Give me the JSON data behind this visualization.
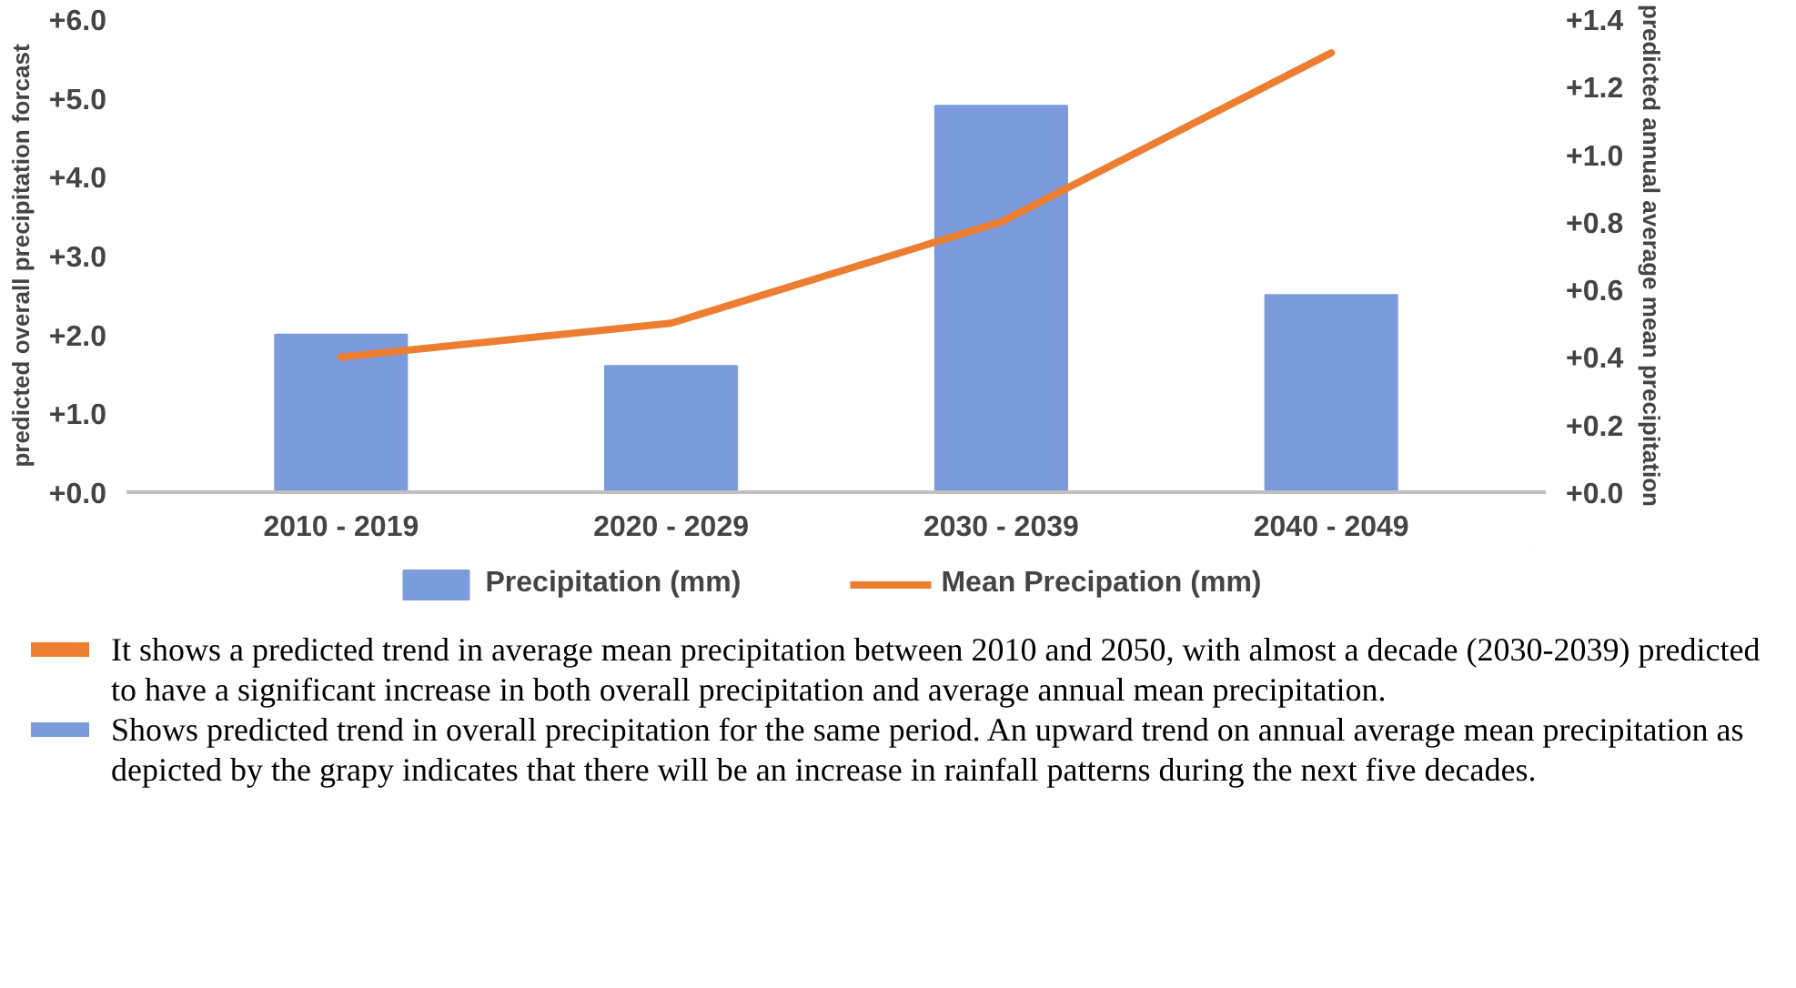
{
  "chart_data": {
    "type": "bar",
    "categories": [
      "2010 - 2019",
      "2020 - 2029",
      "2030 - 2039",
      "2040 - 2049"
    ],
    "ylabel": "predicted overall precipitation forcast",
    "y2label": "predicted annual average mean precipitation",
    "series": [
      {
        "name": "Precipitation (mm)",
        "color": "#7b9bdc",
        "values": [
          2.0,
          1.6,
          4.9,
          2.5
        ]
      },
      {
        "name": "Mean Precipation (mm)",
        "type": "line",
        "axis": "y2",
        "color": "#ed7d31",
        "values": [
          0.4,
          0.5,
          0.8,
          1.3
        ]
      }
    ],
    "ylim": [
      0,
      6
    ],
    "yticks": [
      {
        "value": 0,
        "label": "+0.0"
      },
      {
        "value": 1,
        "label": "+1.0"
      },
      {
        "value": 2,
        "label": "+2.0"
      },
      {
        "value": 3,
        "label": "+3.0"
      },
      {
        "value": 4,
        "label": "+4.0"
      },
      {
        "value": 5,
        "label": "+5.0"
      },
      {
        "value": 6,
        "label": "+6.0"
      }
    ],
    "y2lim": [
      0,
      1.4
    ],
    "y2ticks": [
      {
        "value": 0,
        "label": "+0.0"
      },
      {
        "value": 0.2,
        "label": "+0.2"
      },
      {
        "value": 0.4,
        "label": "+0.4"
      },
      {
        "value": 0.6,
        "label": "+0.6"
      },
      {
        "value": 0.8,
        "label": "+0.8"
      },
      {
        "value": 1.0,
        "label": "+1.0"
      },
      {
        "value": 1.2,
        "label": "+1.2"
      },
      {
        "value": 1.4,
        "label": "+1.4"
      }
    ],
    "grid": false,
    "legend": "bottom",
    "annotations": [
      "It shows a predicted trend in average mean precipitation between 2010 and 2050, with almost a decade (2030-2039) predicted to have a significant increase in both overall precipitation and average annual mean precipitation.",
      "Shows predicted trend in overall precipitation for the same period. An upward trend on annual average mean precipitation as depicted by the grapy indicates that there will be an increase in rainfall patterns during the next five decades."
    ]
  }
}
